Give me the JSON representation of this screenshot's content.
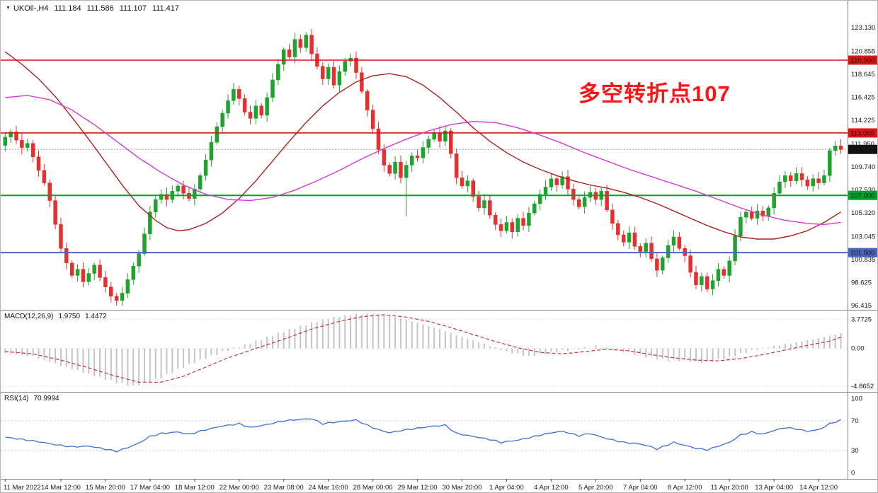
{
  "window": {
    "symbol_period": "UKOil-,H4",
    "ohlc": {
      "open": "111.184",
      "high": "111.586",
      "low": "111.107",
      "close": "111.417"
    }
  },
  "indicators": {
    "macd": {
      "label": "MACD(12,26,9)",
      "value_main": "1.9750",
      "value_signal": "1.4472"
    },
    "rsi": {
      "label": "RSI(14)",
      "value": "70.9994"
    }
  },
  "annotation": {
    "text": "多空转折点107",
    "color": "#FF1414"
  },
  "colors": {
    "candle_up": "#1FA32E",
    "candle_down": "#E53030",
    "ma_fast_red": "#B02020",
    "ma_slow_magenta": "#D43BD4",
    "hline_red": "#DC1414",
    "hline_green": "#00A22A",
    "hline_blue": "#4964BE",
    "current_badge": "#111111",
    "macd_hist": "#C4C4C4",
    "macd_signal": "#CC3333",
    "rsi_line": "#3E6FD9",
    "axis_text": "#1a1a1a",
    "separator": "#808080"
  },
  "chart_data": {
    "type": "candlestick",
    "symbol": "UKOil-",
    "timeframe": "H4",
    "main": {
      "ylim": [
        96.0,
        125.71
      ],
      "first_open": 111.8,
      "closes": [
        112.6,
        113.1,
        112.3,
        111.6,
        112.0,
        110.7,
        109.4,
        108.2,
        106.5,
        104.2,
        101.9,
        100.5,
        99.3,
        99.9,
        98.7,
        99.5,
        100.3,
        99.1,
        98.2,
        97.3,
        96.9,
        97.6,
        98.9,
        100.2,
        101.4,
        103.3,
        105.4,
        106.6,
        107.1,
        106.6,
        107.4,
        107.9,
        107.2,
        106.7,
        107.6,
        108.9,
        110.4,
        112.1,
        113.6,
        114.9,
        116.1,
        117.2,
        116.3,
        115.0,
        114.4,
        115.6,
        114.7,
        116.4,
        118.1,
        119.6,
        121.0,
        120.3,
        122.0,
        121.2,
        122.4,
        120.6,
        119.4,
        118.2,
        119.3,
        117.6,
        118.9,
        119.9,
        120.2,
        118.8,
        117.0,
        115.2,
        113.4,
        111.4,
        109.9,
        109.1,
        110.2,
        108.7,
        109.9,
        110.8,
        110.6,
        111.6,
        112.4,
        113.0,
        112.2,
        113.2,
        111.0,
        108.7,
        107.9,
        108.4,
        106.9,
        105.8,
        106.5,
        105.1,
        104.2,
        103.6,
        104.4,
        103.5,
        104.8,
        104.1,
        105.3,
        106.2,
        107.1,
        107.8,
        108.6,
        108.0,
        108.8,
        107.6,
        106.6,
        105.9,
        106.8,
        107.3,
        106.6,
        107.4,
        105.6,
        104.3,
        103.2,
        102.5,
        103.4,
        102.1,
        101.6,
        102.4,
        100.9,
        99.8,
        101.0,
        102.2,
        103.0,
        101.9,
        101.2,
        99.6,
        98.4,
        99.2,
        98.0,
        98.8,
        99.9,
        99.3,
        100.7,
        103.1,
        104.9,
        105.4,
        104.8,
        105.5,
        105.0,
        105.8,
        107.2,
        108.3,
        108.9,
        108.4,
        109.1,
        108.5,
        107.9,
        108.6,
        108.2,
        108.9,
        111.3,
        111.75,
        111.417
      ],
      "wick_low_overrides": {
        "20": 96.42,
        "72": 105.0
      },
      "current_price": 111.417,
      "axis_labels": [
        {
          "v": 123.13,
          "t": "123.130"
        },
        {
          "v": 120.855,
          "t": "120.855"
        },
        {
          "v": 118.645,
          "t": "118.645"
        },
        {
          "v": 116.425,
          "t": "116.425"
        },
        {
          "v": 114.225,
          "t": "114.225"
        },
        {
          "v": 111.95,
          "t": "111.950"
        },
        {
          "v": 109.74,
          "t": "109.740"
        },
        {
          "v": 107.53,
          "t": "107.530"
        },
        {
          "v": 105.32,
          "t": "105.320"
        },
        {
          "v": 103.045,
          "t": "103.045"
        },
        {
          "v": 100.835,
          "t": "100.835"
        },
        {
          "v": 98.625,
          "t": "98.625"
        },
        {
          "v": 96.415,
          "t": "96.415"
        }
      ],
      "hlines": [
        {
          "price": 120.0,
          "label": "120.000",
          "color": "#DC1414",
          "width": 1.6
        },
        {
          "price": 113.0,
          "label": "113.000",
          "color": "#DC1414",
          "width": 1.6
        },
        {
          "price": 107.0,
          "label": "107.000",
          "color": "#00A22A",
          "width": 2
        },
        {
          "price": 101.5,
          "label": "101.500",
          "color": "#4964BE",
          "width": 2
        }
      ],
      "ma_slow_magenta": [
        [
          0,
          116.4
        ],
        [
          4,
          116.6
        ],
        [
          8,
          116.2
        ],
        [
          12,
          115.2
        ],
        [
          16,
          113.8
        ],
        [
          20,
          112.2
        ],
        [
          24,
          110.6
        ],
        [
          28,
          109.2
        ],
        [
          32,
          108.0
        ],
        [
          36,
          107.1
        ],
        [
          40,
          106.6
        ],
        [
          44,
          106.5
        ],
        [
          48,
          106.8
        ],
        [
          52,
          107.5
        ],
        [
          56,
          108.4
        ],
        [
          60,
          109.4
        ],
        [
          64,
          110.5
        ],
        [
          68,
          111.5
        ],
        [
          72,
          112.4
        ],
        [
          76,
          113.2
        ],
        [
          80,
          113.8
        ],
        [
          84,
          114.1
        ],
        [
          88,
          114.0
        ],
        [
          92,
          113.5
        ],
        [
          96,
          112.8
        ],
        [
          100,
          112.0
        ],
        [
          104,
          111.1
        ],
        [
          108,
          110.3
        ],
        [
          112,
          109.5
        ],
        [
          116,
          108.8
        ],
        [
          120,
          108.1
        ],
        [
          124,
          107.4
        ],
        [
          128,
          106.6
        ],
        [
          132,
          105.8
        ],
        [
          136,
          105.1
        ],
        [
          140,
          104.6
        ],
        [
          144,
          104.3
        ],
        [
          147,
          104.2
        ],
        [
          150,
          104.4
        ]
      ],
      "ma_fast_red": [
        [
          0,
          120.8
        ],
        [
          3,
          119.6
        ],
        [
          6,
          118.2
        ],
        [
          9,
          116.5
        ],
        [
          12,
          114.5
        ],
        [
          15,
          112.4
        ],
        [
          18,
          110.2
        ],
        [
          21,
          108.0
        ],
        [
          24,
          106.0
        ],
        [
          27,
          104.6
        ],
        [
          29,
          103.9
        ],
        [
          31,
          103.6
        ],
        [
          33,
          103.7
        ],
        [
          36,
          104.3
        ],
        [
          39,
          105.3
        ],
        [
          42,
          106.7
        ],
        [
          45,
          108.4
        ],
        [
          48,
          110.3
        ],
        [
          51,
          112.2
        ],
        [
          54,
          114.0
        ],
        [
          57,
          115.6
        ],
        [
          60,
          116.9
        ],
        [
          63,
          117.9
        ],
        [
          66,
          118.5
        ],
        [
          69,
          118.7
        ],
        [
          72,
          118.4
        ],
        [
          75,
          117.6
        ],
        [
          78,
          116.4
        ],
        [
          81,
          115.0
        ],
        [
          84,
          113.5
        ],
        [
          87,
          112.2
        ],
        [
          90,
          111.1
        ],
        [
          93,
          110.2
        ],
        [
          96,
          109.5
        ],
        [
          99,
          108.9
        ],
        [
          102,
          108.4
        ],
        [
          105,
          108.0
        ],
        [
          108,
          107.7
        ],
        [
          111,
          107.3
        ],
        [
          114,
          106.8
        ],
        [
          117,
          106.2
        ],
        [
          120,
          105.5
        ],
        [
          123,
          104.8
        ],
        [
          126,
          104.1
        ],
        [
          129,
          103.5
        ],
        [
          132,
          103.0
        ],
        [
          135,
          102.8
        ],
        [
          138,
          102.8
        ],
        [
          141,
          103.1
        ],
        [
          144,
          103.6
        ],
        [
          147,
          104.4
        ],
        [
          150,
          105.4
        ]
      ]
    },
    "macd": {
      "ylim": [
        -5.6,
        4.9
      ],
      "axis_labels": [
        {
          "v": 3.7725,
          "t": "3.7725"
        },
        {
          "v": 0,
          "t": "0.00"
        },
        {
          "v": -4.8652,
          "t": "-4.8652"
        }
      ],
      "hist": [
        [
          0,
          -0.6
        ],
        [
          5,
          -1.0
        ],
        [
          10,
          -2.2
        ],
        [
          15,
          -3.3
        ],
        [
          20,
          -4.4
        ],
        [
          23,
          -4.85
        ],
        [
          27,
          -4.1
        ],
        [
          31,
          -2.7
        ],
        [
          35,
          -1.5
        ],
        [
          40,
          -0.2
        ],
        [
          45,
          0.9
        ],
        [
          50,
          2.2
        ],
        [
          55,
          3.3
        ],
        [
          58,
          3.9
        ],
        [
          62,
          4.35
        ],
        [
          66,
          4.5
        ],
        [
          70,
          4.1
        ],
        [
          74,
          3.3
        ],
        [
          78,
          2.5
        ],
        [
          82,
          1.5
        ],
        [
          86,
          0.6
        ],
        [
          90,
          -0.4
        ],
        [
          94,
          -1.0
        ],
        [
          98,
          -0.5
        ],
        [
          102,
          -0.1
        ],
        [
          106,
          0.3
        ],
        [
          110,
          -0.2
        ],
        [
          114,
          -0.9
        ],
        [
          118,
          -1.4
        ],
        [
          122,
          -1.6
        ],
        [
          126,
          -1.8
        ],
        [
          130,
          -1.1
        ],
        [
          134,
          -0.3
        ],
        [
          138,
          0.3
        ],
        [
          142,
          0.8
        ],
        [
          146,
          1.3
        ],
        [
          150,
          1.975
        ]
      ],
      "signal": [
        [
          0,
          -0.4
        ],
        [
          5,
          -0.7
        ],
        [
          10,
          -1.5
        ],
        [
          15,
          -2.5
        ],
        [
          20,
          -3.6
        ],
        [
          24,
          -4.35
        ],
        [
          28,
          -4.35
        ],
        [
          32,
          -3.6
        ],
        [
          36,
          -2.4
        ],
        [
          40,
          -1.2
        ],
        [
          45,
          0.0
        ],
        [
          50,
          1.2
        ],
        [
          55,
          2.5
        ],
        [
          60,
          3.5
        ],
        [
          64,
          4.1
        ],
        [
          68,
          4.35
        ],
        [
          72,
          4.05
        ],
        [
          76,
          3.5
        ],
        [
          80,
          2.7
        ],
        [
          84,
          1.8
        ],
        [
          88,
          0.9
        ],
        [
          92,
          0.1
        ],
        [
          96,
          -0.5
        ],
        [
          100,
          -0.7
        ],
        [
          104,
          -0.4
        ],
        [
          108,
          -0.1
        ],
        [
          112,
          -0.3
        ],
        [
          116,
          -0.8
        ],
        [
          120,
          -1.2
        ],
        [
          124,
          -1.5
        ],
        [
          128,
          -1.6
        ],
        [
          132,
          -1.3
        ],
        [
          136,
          -0.8
        ],
        [
          140,
          -0.2
        ],
        [
          144,
          0.4
        ],
        [
          148,
          0.95
        ],
        [
          150,
          1.4472
        ]
      ]
    },
    "rsi": {
      "ylim": [
        -8,
        108
      ],
      "levels": [
        30,
        70
      ],
      "axis_labels": [
        {
          "v": 100,
          "t": "100"
        },
        {
          "v": 70,
          "t": "70"
        },
        {
          "v": 30,
          "t": "30"
        },
        {
          "v": 0,
          "t": "0"
        }
      ],
      "values": [
        [
          0,
          48
        ],
        [
          3,
          45
        ],
        [
          6,
          42
        ],
        [
          9,
          38
        ],
        [
          12,
          35
        ],
        [
          15,
          36
        ],
        [
          18,
          32
        ],
        [
          20,
          29
        ],
        [
          22,
          34
        ],
        [
          24,
          40
        ],
        [
          26,
          49
        ],
        [
          28,
          53
        ],
        [
          31,
          55
        ],
        [
          33,
          52
        ],
        [
          36,
          58
        ],
        [
          39,
          63
        ],
        [
          42,
          66
        ],
        [
          44,
          61
        ],
        [
          47,
          65
        ],
        [
          50,
          70
        ],
        [
          53,
          72
        ],
        [
          55,
          73
        ],
        [
          57,
          66
        ],
        [
          60,
          69
        ],
        [
          63,
          71
        ],
        [
          65,
          64
        ],
        [
          67,
          58
        ],
        [
          69,
          54
        ],
        [
          71,
          57
        ],
        [
          74,
          60
        ],
        [
          77,
          63
        ],
        [
          79,
          64
        ],
        [
          81,
          53
        ],
        [
          84,
          49
        ],
        [
          87,
          45
        ],
        [
          89,
          41
        ],
        [
          92,
          44
        ],
        [
          95,
          49
        ],
        [
          98,
          54
        ],
        [
          100,
          56
        ],
        [
          103,
          50
        ],
        [
          105,
          53
        ],
        [
          108,
          46
        ],
        [
          111,
          41
        ],
        [
          114,
          39
        ],
        [
          116,
          35
        ],
        [
          117,
          32
        ],
        [
          119,
          38
        ],
        [
          120,
          41
        ],
        [
          122,
          37
        ],
        [
          124,
          33
        ],
        [
          126,
          31
        ],
        [
          128,
          36
        ],
        [
          130,
          41
        ],
        [
          132,
          51
        ],
        [
          134,
          55
        ],
        [
          136,
          52
        ],
        [
          138,
          57
        ],
        [
          140,
          61
        ],
        [
          142,
          59
        ],
        [
          144,
          56
        ],
        [
          146,
          58
        ],
        [
          148,
          66
        ],
        [
          150,
          71
        ]
      ]
    },
    "time_labels": [
      {
        "i": 0,
        "t": "11 Mar 2022"
      },
      {
        "i": 10,
        "t": "14 Mar 12:00"
      },
      {
        "i": 18,
        "t": "15 Mar 20:00"
      },
      {
        "i": 26,
        "t": "17 Mar 04:00"
      },
      {
        "i": 34,
        "t": "18 Mar 12:00"
      },
      {
        "i": 42,
        "t": "22 Mar 00:00"
      },
      {
        "i": 50,
        "t": "23 Mar 08:00"
      },
      {
        "i": 58,
        "t": "24 Mar 16:00"
      },
      {
        "i": 66,
        "t": "28 Mar 00:00"
      },
      {
        "i": 74,
        "t": "29 Mar 12:00"
      },
      {
        "i": 82,
        "t": "30 Mar 20:00"
      },
      {
        "i": 90,
        "t": "1 Apr 04:00"
      },
      {
        "i": 98,
        "t": "4 Apr 12:00"
      },
      {
        "i": 106,
        "t": "5 Apr 20:00"
      },
      {
        "i": 114,
        "t": "7 Apr 04:00"
      },
      {
        "i": 122,
        "t": "8 Apr 12:00"
      },
      {
        "i": 130,
        "t": "11 Apr 20:00"
      },
      {
        "i": 138,
        "t": "13 Apr 04:00"
      },
      {
        "i": 146,
        "t": "14 Apr 12:00"
      }
    ]
  }
}
